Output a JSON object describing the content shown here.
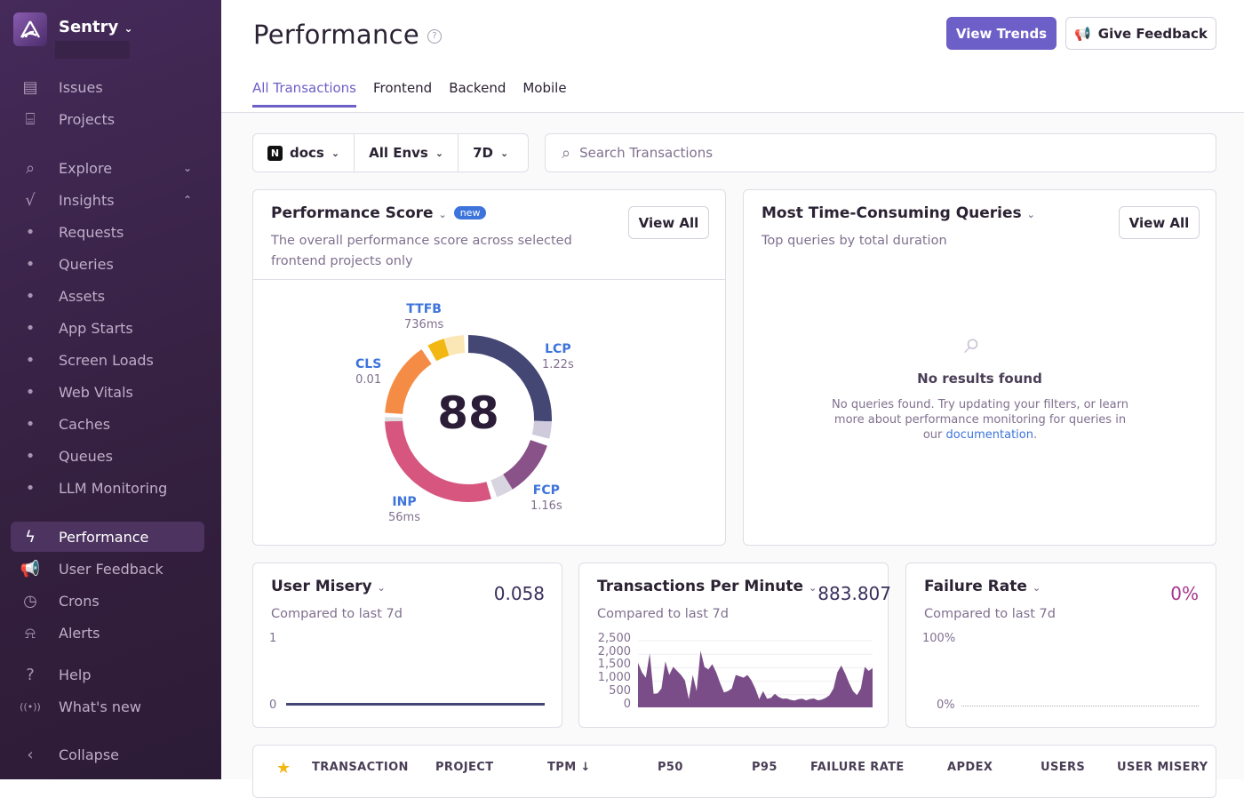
{
  "sidebar": {
    "org": "Sentry",
    "items": [
      {
        "label": "Issues",
        "icon": "inbox-icon",
        "glyph": "▤",
        "top": 81
      },
      {
        "label": "Projects",
        "icon": "folder-code-icon",
        "glyph": "⌸",
        "top": 117
      },
      {
        "label": "Explore",
        "icon": "search-icon",
        "glyph": "⌕",
        "top": 172,
        "chev": "⌄"
      },
      {
        "label": "Insights",
        "icon": "insights-icon",
        "glyph": "√",
        "top": 208,
        "chev": "⌃"
      },
      {
        "label": "Requests",
        "icon": "bullet-icon",
        "glyph": "•",
        "top": 244
      },
      {
        "label": "Queries",
        "icon": "bullet-icon",
        "glyph": "•",
        "top": 280
      },
      {
        "label": "Assets",
        "icon": "bullet-icon",
        "glyph": "•",
        "top": 316
      },
      {
        "label": "App Starts",
        "icon": "bullet-icon",
        "glyph": "•",
        "top": 352
      },
      {
        "label": "Screen Loads",
        "icon": "bullet-icon",
        "glyph": "•",
        "top": 388
      },
      {
        "label": "Web Vitals",
        "icon": "bullet-icon",
        "glyph": "•",
        "top": 424
      },
      {
        "label": "Caches",
        "icon": "bullet-icon",
        "glyph": "•",
        "top": 460
      },
      {
        "label": "Queues",
        "icon": "bullet-icon",
        "glyph": "•",
        "top": 496
      },
      {
        "label": "LLM Monitoring",
        "icon": "bullet-icon",
        "glyph": "•",
        "top": 532
      },
      {
        "label": "Performance",
        "icon": "lightning-icon",
        "glyph": "ϟ",
        "top": 587,
        "active": true
      },
      {
        "label": "User Feedback",
        "icon": "megaphone-icon",
        "glyph": "📢",
        "top": 623
      },
      {
        "label": "Crons",
        "icon": "clock-icon",
        "glyph": "◷",
        "top": 659
      },
      {
        "label": "Alerts",
        "icon": "siren-icon",
        "glyph": "⍾",
        "top": 695
      },
      {
        "label": "Help",
        "icon": "question-icon",
        "glyph": "?",
        "top": 742
      },
      {
        "label": "What's new",
        "icon": "broadcast-icon",
        "glyph": "((•))",
        "top": 778
      },
      {
        "label": "Collapse",
        "icon": "chevron-left-icon",
        "glyph": "‹",
        "top": 832
      }
    ]
  },
  "header": {
    "title": "Performance",
    "view_trends": "View Trends",
    "give_feedback": "Give Feedback",
    "tabs": [
      "All Transactions",
      "Frontend",
      "Backend",
      "Mobile"
    ]
  },
  "filters": {
    "project": "docs",
    "env": "All Envs",
    "period": "7D",
    "search_placeholder": "Search Transactions"
  },
  "perf_score": {
    "title": "Performance Score",
    "badge": "new",
    "subtitle": "The overall performance score across selected frontend projects only",
    "view_all": "View All",
    "score": "88",
    "metrics": [
      {
        "name": "TTFB",
        "value": "736ms"
      },
      {
        "name": "LCP",
        "value": "1.22s"
      },
      {
        "name": "CLS",
        "value": "0.01"
      },
      {
        "name": "FCP",
        "value": "1.16s"
      },
      {
        "name": "INP",
        "value": "56ms"
      }
    ],
    "colors": {
      "LCP": "#444674",
      "FCP": "#895289",
      "INP": "#d6567f",
      "CLS": "#f58c46",
      "TTFB": "#f2b712"
    }
  },
  "queries": {
    "title": "Most Time-Consuming Queries",
    "subtitle": "Top queries by total duration",
    "view_all": "View All",
    "empty_title": "No results found",
    "empty_text": "No queries found. Try updating your filters, or learn more about performance monitoring for queries in our",
    "empty_link": "documentation",
    "empty_end": "."
  },
  "user_misery": {
    "title": "User Misery",
    "compare": "Compared to last 7d",
    "value": "0.058",
    "y_ticks": [
      "1",
      "0"
    ]
  },
  "tpm": {
    "title": "Transactions Per Minute",
    "compare": "Compared to last 7d",
    "value": "883.807",
    "y_ticks": [
      "2,500",
      "2,000",
      "1,500",
      "1,000",
      "500",
      "0"
    ]
  },
  "failure_rate": {
    "title": "Failure Rate",
    "compare": "Compared to last 7d",
    "value": "0%",
    "y_ticks": [
      "100%",
      "0%"
    ]
  },
  "chart_data": {
    "type": "area",
    "ylim": [
      0,
      2500
    ],
    "y_ticks": [
      0,
      500,
      1000,
      1500,
      2000,
      2500
    ],
    "values": [
      1650,
      1300,
      1100,
      2000,
      500,
      520,
      700,
      1700,
      1200,
      1500,
      1350,
      1200,
      1000,
      300,
      1200,
      600,
      2100,
      1500,
      1400,
      1600,
      1300,
      900,
      550,
      600,
      700,
      1200,
      1150,
      1100,
      1200,
      1000,
      700,
      300,
      600,
      320,
      350,
      500,
      380,
      320,
      330,
      280,
      250,
      300,
      320,
      260,
      310,
      330,
      260,
      290,
      350,
      450,
      700,
      1300,
      1550,
      1250,
      900,
      600,
      450,
      700,
      1500,
      1350,
      1450
    ],
    "color": "#7a4d88"
  },
  "table": {
    "columns": [
      "TRANSACTION",
      "PROJECT",
      "TPM",
      "P50",
      "P95",
      "FAILURE RATE",
      "APDEX",
      "USERS",
      "USER MISERY"
    ],
    "sort_indicator": "↓"
  }
}
